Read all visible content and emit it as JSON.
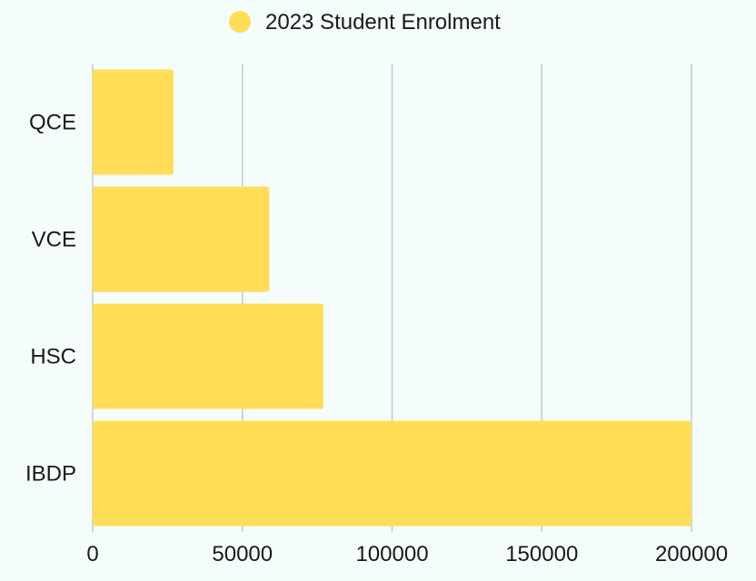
{
  "chart_data": {
    "type": "bar",
    "orientation": "horizontal",
    "categories": [
      "QCE",
      "VCE",
      "HSC",
      "IBDP"
    ],
    "series": [
      {
        "name": "2023 Student Enrolment",
        "values": [
          27000,
          59000,
          77000,
          200000
        ]
      }
    ],
    "xlim": [
      0,
      200000
    ],
    "xticks": [
      0,
      50000,
      100000,
      150000,
      200000
    ],
    "xtick_labels": [
      "0",
      "50000",
      "100000",
      "150000",
      "200000"
    ],
    "grid": "vertical",
    "legend_position": "top-center",
    "colors": {
      "bar": "#ffdd57",
      "grid": "#c2c9c9",
      "background": "#f5fdfc"
    }
  }
}
